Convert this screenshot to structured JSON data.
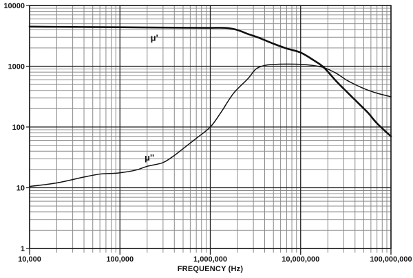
{
  "chart_data": {
    "type": "line",
    "title": "",
    "xlabel": "FREQUENCY (Hz)",
    "ylabel": "",
    "x_scale": "log",
    "y_scale": "log",
    "xlim": [
      10000,
      100000000
    ],
    "ylim": [
      1,
      10000
    ],
    "grid": "major and minor log gridlines on both axes",
    "legend": "inline curve labels",
    "x_ticks": [
      {
        "value": 10000,
        "label": "10,000"
      },
      {
        "value": 100000,
        "label": "100,000"
      },
      {
        "value": 1000000,
        "label": "1,000,000"
      },
      {
        "value": 10000000,
        "label": "10,000,000"
      },
      {
        "value": 100000000,
        "label": "100,000,000"
      }
    ],
    "y_ticks": [
      {
        "value": 1,
        "label": "1"
      },
      {
        "value": 10,
        "label": "10"
      },
      {
        "value": 100,
        "label": "100"
      },
      {
        "value": 1000,
        "label": "1000"
      },
      {
        "value": 10000,
        "label": "10000"
      }
    ],
    "colors": {
      "curve": "#111111",
      "grid_major": "#1f1f1f",
      "grid_minor": "#8a8a8a",
      "background": "#ffffff"
    },
    "series": [
      {
        "id": "mu-prime",
        "name": "μ'",
        "stroke_width": 2.6,
        "label_at": [
          240000,
          2900
        ],
        "points": [
          [
            10000,
            4480
          ],
          [
            20000,
            4450
          ],
          [
            40000,
            4420
          ],
          [
            100000,
            4380
          ],
          [
            300000,
            4330
          ],
          [
            600000,
            4300
          ],
          [
            1000000,
            4290
          ],
          [
            1500000,
            4270
          ],
          [
            2000000,
            3950
          ],
          [
            2600000,
            3400
          ],
          [
            3300000,
            3020
          ],
          [
            4000000,
            2690
          ],
          [
            5000000,
            2350
          ],
          [
            7000000,
            1960
          ],
          [
            10000000,
            1680
          ],
          [
            14000000,
            1250
          ],
          [
            18000000,
            960
          ],
          [
            25000000,
            560
          ],
          [
            33000000,
            370
          ],
          [
            45000000,
            235
          ],
          [
            56000000,
            170
          ],
          [
            70000000,
            115
          ],
          [
            100000000,
            70
          ]
        ]
      },
      {
        "id": "mu-double-prime",
        "name": "μ''",
        "stroke_width": 1.5,
        "label_at": [
          212000,
          31
        ],
        "points": [
          [
            10000,
            10.5
          ],
          [
            20000,
            12
          ],
          [
            40000,
            15
          ],
          [
            60000,
            16.8
          ],
          [
            80000,
            17.2
          ],
          [
            100000,
            17.6
          ],
          [
            150000,
            19.5
          ],
          [
            200000,
            22.5
          ],
          [
            300000,
            26
          ],
          [
            400000,
            34
          ],
          [
            500000,
            44
          ],
          [
            700000,
            65
          ],
          [
            1000000,
            100
          ],
          [
            1300000,
            170
          ],
          [
            1800000,
            355
          ],
          [
            2600000,
            620
          ],
          [
            3200000,
            900
          ],
          [
            4000000,
            1030
          ],
          [
            5000000,
            1070
          ],
          [
            7000000,
            1085
          ],
          [
            10000000,
            1075
          ],
          [
            13000000,
            1040
          ],
          [
            18000000,
            950
          ],
          [
            25000000,
            760
          ],
          [
            33000000,
            580
          ],
          [
            50000000,
            430
          ],
          [
            70000000,
            360
          ],
          [
            100000000,
            315
          ]
        ]
      }
    ]
  }
}
